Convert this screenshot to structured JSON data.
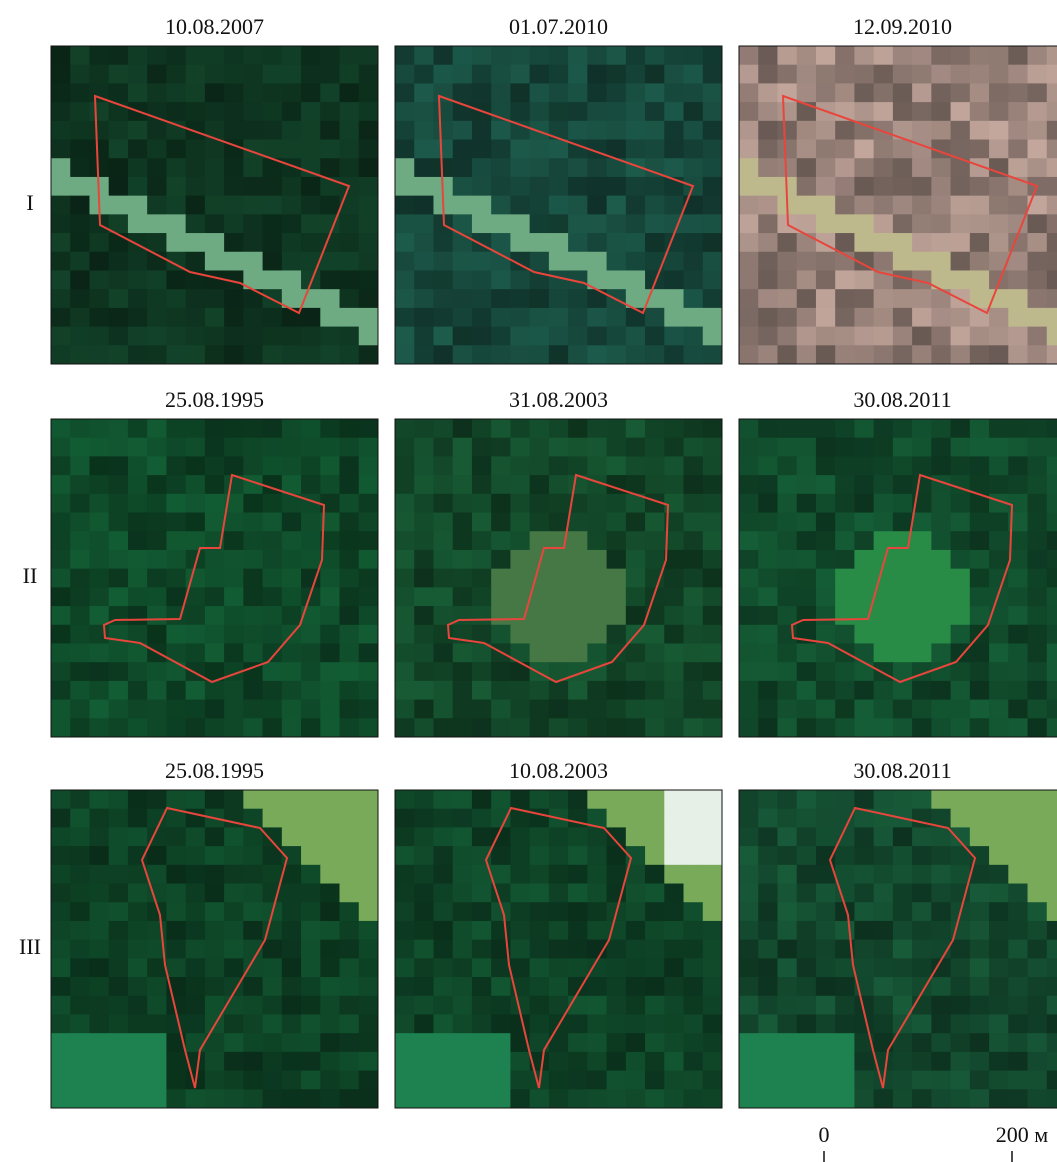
{
  "rows": [
    {
      "label": "I",
      "panels": [
        {
          "date": "10.08.2007"
        },
        {
          "date": "01.07.2010"
        },
        {
          "date": "12.09.2010"
        }
      ]
    },
    {
      "label": "II",
      "panels": [
        {
          "date": "25.08.1995"
        },
        {
          "date": "31.08.2003"
        },
        {
          "date": "30.08.2011"
        }
      ]
    },
    {
      "label": "III",
      "panels": [
        {
          "date": "25.08.1995"
        },
        {
          "date": "10.08.2003"
        },
        {
          "date": "30.08.2011"
        }
      ]
    }
  ],
  "scale_bar": {
    "start": "0",
    "end": "200 м"
  }
}
